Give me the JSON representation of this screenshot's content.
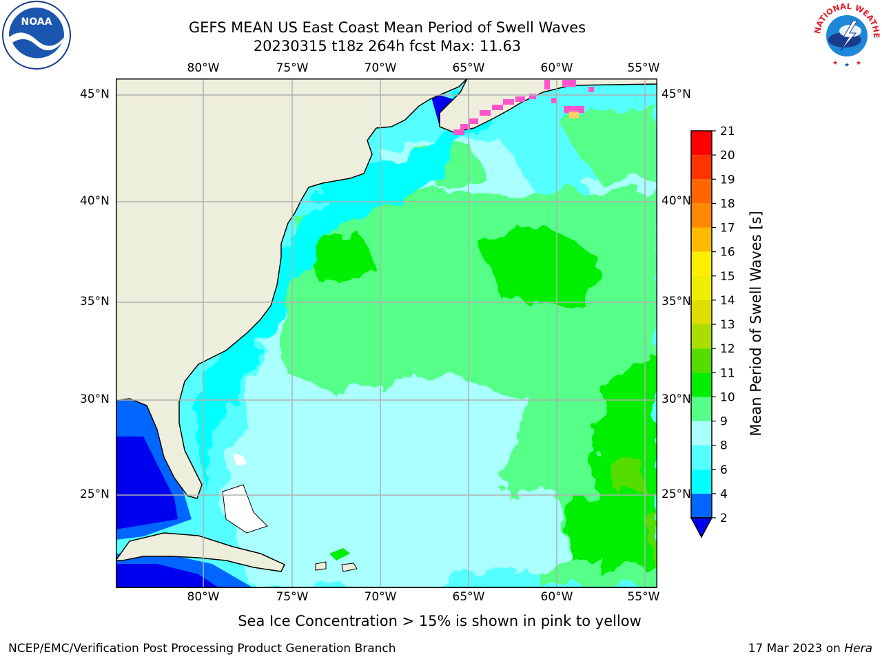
{
  "title": {
    "line1": "GEFS MEAN US East Coast Mean Period of Swell Waves",
    "line2": "20230315 t18z 264h fcst   Max: 11.63"
  },
  "map": {
    "lon_labels": [
      "80°W",
      "75°W",
      "70°W",
      "65°W",
      "60°W",
      "55°W"
    ],
    "lat_labels": [
      "45°N",
      "40°N",
      "35°N",
      "30°N",
      "25°N"
    ],
    "colors": {
      "land": "#eeeedc",
      "grid": "#b0b0b0",
      "ice": "#ff55cc"
    }
  },
  "colorbar": {
    "label": "Mean Period of Swell Waves [s]",
    "ticks": [
      "2",
      "4",
      "6",
      "8",
      "9",
      "10",
      "11",
      "12",
      "13",
      "14",
      "15",
      "16",
      "17",
      "18",
      "19",
      "20",
      "21"
    ],
    "colors": [
      "#0066ff",
      "#00ffff",
      "#55ffff",
      "#aaffff",
      "#55ff88",
      "#00ee00",
      "#55dd00",
      "#aadd00",
      "#dddd00",
      "#eeee00",
      "#ffee00",
      "#ffbb00",
      "#ff8800",
      "#ff6600",
      "#ff3300",
      "#ff0000"
    ],
    "underflow_color": "#0000ee"
  },
  "footnote": "Sea Ice Concentration > 15% is shown in pink to yellow",
  "footer": {
    "left": "NCEP/EMC/Verification Post Processing Product Generation Branch",
    "right_prefix": "17 Mar 2023 on",
    "right_host": "Hera"
  },
  "logos": {
    "noaa": "NOAA",
    "nws": "NATIONAL WEATHER SERVICE"
  }
}
